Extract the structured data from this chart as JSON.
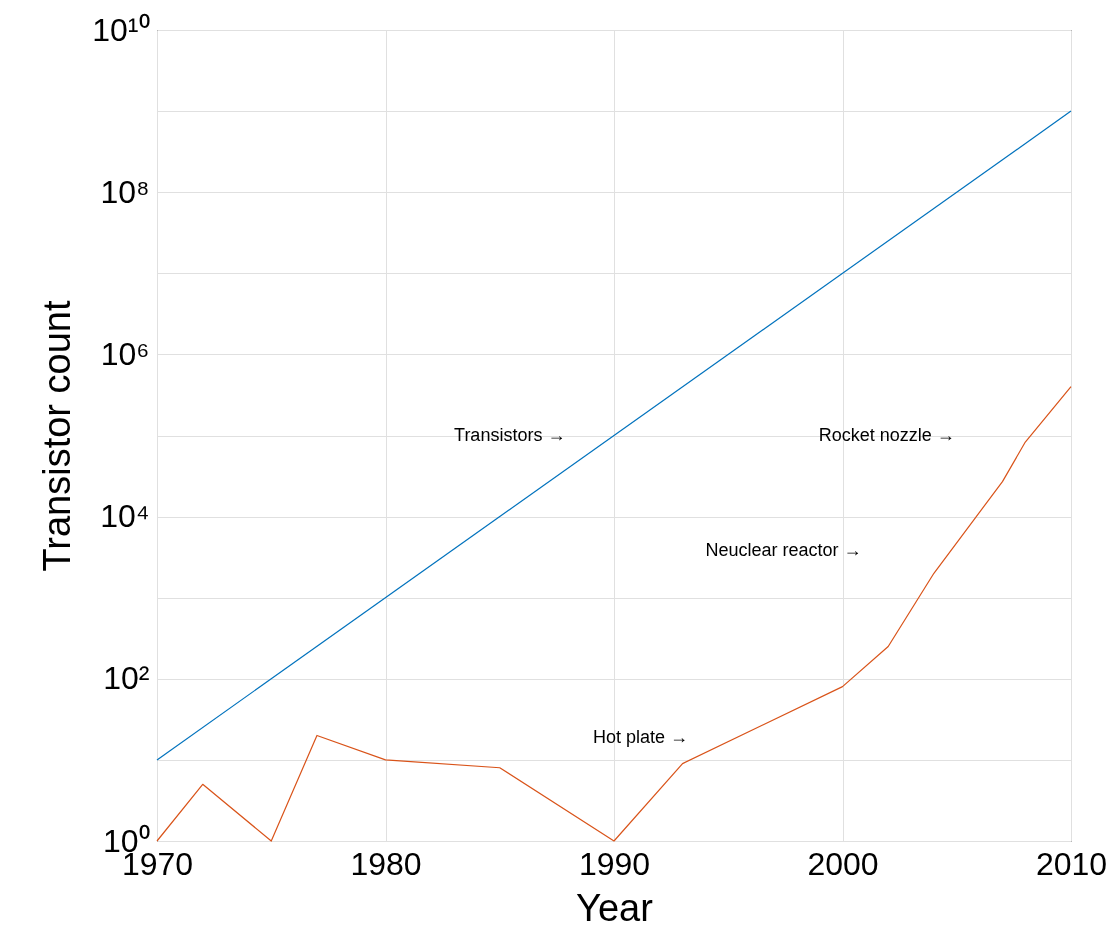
{
  "chart_data": {
    "type": "line",
    "xlabel": "Year",
    "ylabel": "Transistor count",
    "log": "y",
    "grid": true,
    "xlim": [
      1970,
      2010
    ],
    "xticks": [
      1970,
      1980,
      1990,
      2000,
      2010
    ],
    "ylim": [
      1,
      10000000000
    ],
    "yticks": [
      {
        "value": 1,
        "label": "10⁰"
      },
      {
        "value": 10,
        "label": null
      },
      {
        "value": 100,
        "label": "10²"
      },
      {
        "value": 1000,
        "label": null
      },
      {
        "value": 10000,
        "label": "10⁴"
      },
      {
        "value": 100000,
        "label": null
      },
      {
        "value": 1000000,
        "label": "10⁶"
      },
      {
        "value": 10000000,
        "label": null
      },
      {
        "value": 100000000,
        "label": "10⁸"
      },
      {
        "value": 1000000000,
        "label": null
      },
      {
        "value": 10000000000,
        "label": "10¹⁰"
      }
    ],
    "series": [
      {
        "color": "#0072bd",
        "x": [
          1970,
          2010
        ],
        "values": [
          10,
          1000000000
        ]
      },
      {
        "color": "#d95319",
        "x": [
          1970,
          1972,
          1975,
          1977,
          1980,
          1985,
          1990,
          1993,
          2000,
          2002,
          2004,
          2007,
          2008,
          2010
        ],
        "values": [
          1,
          5,
          1,
          20,
          10,
          8,
          1,
          9,
          80,
          250,
          2000,
          27000,
          83000,
          400000
        ]
      }
    ],
    "annotations": [
      "Transistors →",
      "Rocket nozzle →",
      "Neuclear reactor      →",
      "Hot plate →"
    ]
  }
}
